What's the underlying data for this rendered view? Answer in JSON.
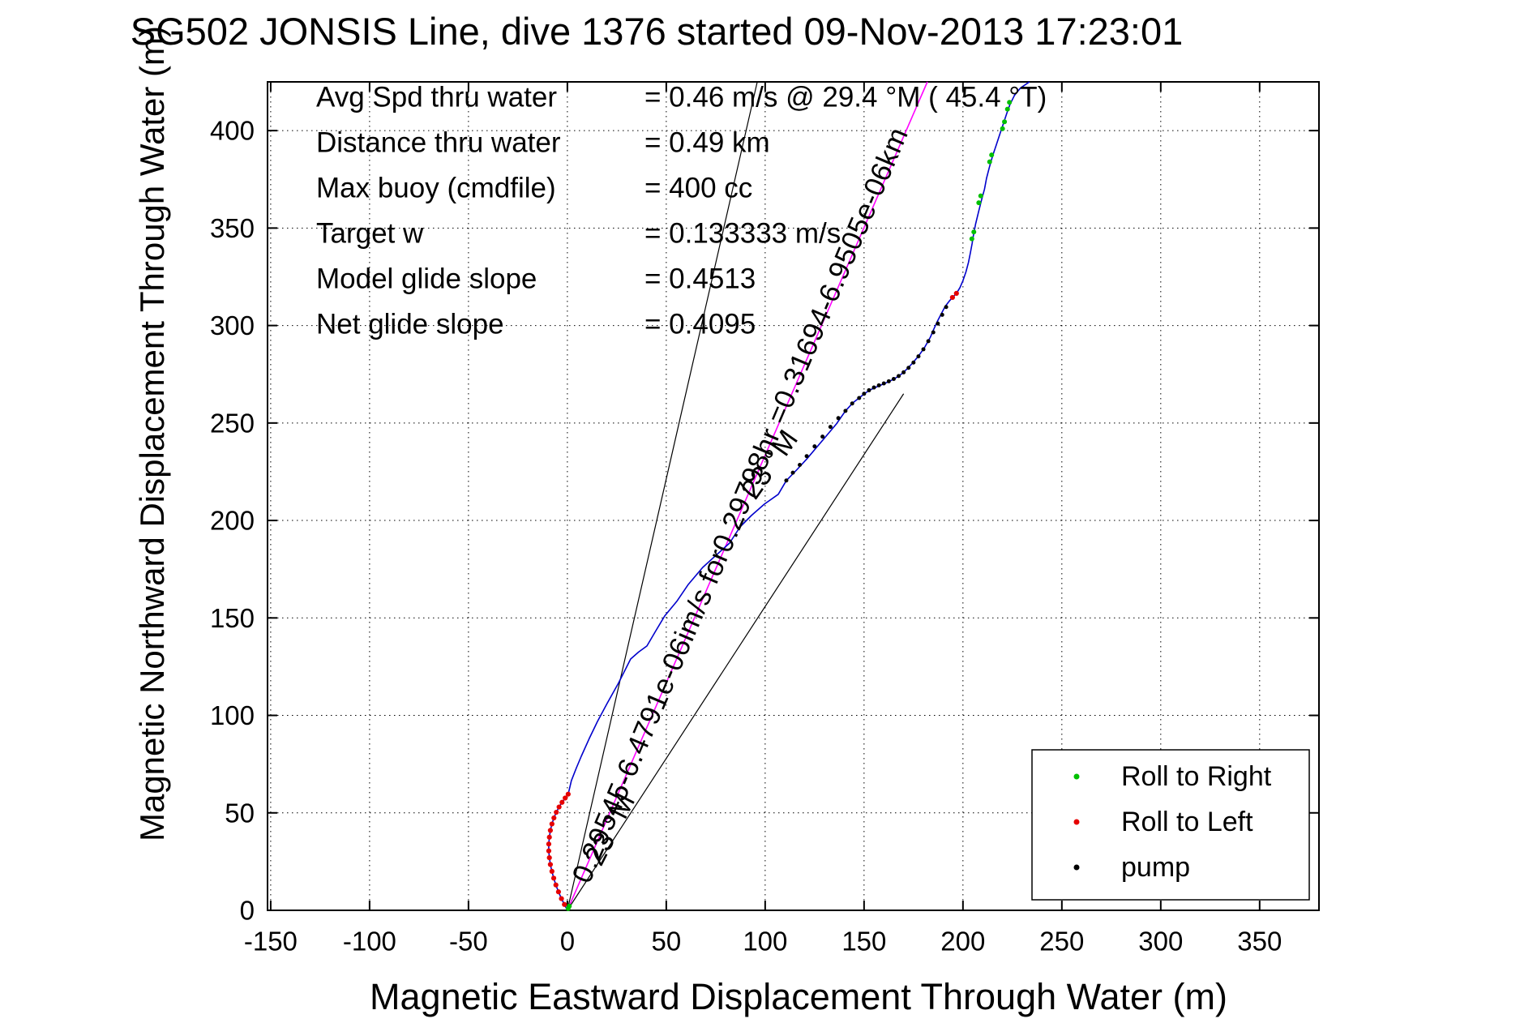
{
  "window": {
    "background": "#ffffff"
  },
  "chart_data": {
    "type": "line",
    "title": "SG502 JONSIS Line, dive 1376 started 09-Nov-2013 17:23:01",
    "xlabel": "Magnetic Eastward Displacement Through Water (m)",
    "ylabel": "Magnetic Northward Displacement Through Water (m)",
    "xlim": [
      -151.6,
      380
    ],
    "ylim": [
      0,
      425
    ],
    "xticks": [
      -150,
      -100,
      -50,
      0,
      50,
      100,
      150,
      200,
      250,
      300,
      350
    ],
    "yticks": [
      0,
      50,
      100,
      150,
      200,
      250,
      300,
      350,
      400
    ],
    "grid": "dotted",
    "grid_color": "#000000",
    "stats": [
      {
        "label": "Avg Spd thru water",
        "value": "=  0.46 m/s @  29.4 °M ( 45.4 °T)"
      },
      {
        "label": "Distance thru water",
        "value": "=  0.49 km"
      },
      {
        "label": "Max buoy (cmdfile)",
        "value": "= 400 cc"
      },
      {
        "label": "Target w",
        "value": "= 0.133333 m/s"
      },
      {
        "label": "Model glide slope",
        "value": "= 0.4513"
      },
      {
        "label": "Net glide slope",
        "value": "= 0.4095"
      }
    ],
    "legend": {
      "position": "lower right",
      "entries": [
        {
          "name": "roll-right",
          "label": "Roll to Right",
          "color": "#00c000"
        },
        {
          "name": "roll-left",
          "label": "Roll to Left",
          "color": "#e60000"
        },
        {
          "name": "pump",
          "label": "pump",
          "color": "#000000"
        }
      ]
    },
    "annotations": [
      {
        "name": "course-speed-annotation",
        "text": "0.29545-6.4791e-06im/s for0.29798hr =0.31694-6.9505e-06km",
        "x": 11,
        "y": 13,
        "rotation": -67
      },
      {
        "name": "bearing-label-1",
        "text": "23 °M",
        "x": 17,
        "y": 22,
        "rotation": -63
      },
      {
        "name": "bearing-label-2",
        "text": "23 °M",
        "x": 95,
        "y": 210,
        "rotation": -55
      }
    ],
    "ref_lines": [
      {
        "name": "bearing-fan-left",
        "color": "#000000",
        "from": [
          0,
          0
        ],
        "to": [
          96,
          425
        ]
      },
      {
        "name": "bearing-fan-right",
        "color": "#000000",
        "from": [
          0,
          0
        ],
        "to": [
          170,
          265
        ]
      },
      {
        "name": "avg-course-line",
        "color": "#ff00ff",
        "from": [
          0,
          0
        ],
        "to": [
          182,
          425
        ]
      }
    ],
    "track": {
      "color": "#0000cc",
      "points": [
        [
          0,
          0
        ],
        [
          -1.5,
          3
        ],
        [
          -3,
          6
        ],
        [
          -4.5,
          9.5
        ],
        [
          -5.8,
          13
        ],
        [
          -6.9,
          16.5
        ],
        [
          -7.8,
          20
        ],
        [
          -8.6,
          23.5
        ],
        [
          -9.1,
          27
        ],
        [
          -9.4,
          30.5
        ],
        [
          -9.4,
          34
        ],
        [
          -9.1,
          37.5
        ],
        [
          -8.6,
          41
        ],
        [
          -7.8,
          44.3
        ],
        [
          -6.8,
          47.4
        ],
        [
          -5.6,
          50.3
        ],
        [
          -4.2,
          53
        ],
        [
          -2.7,
          55.4
        ],
        [
          -1.1,
          57.6
        ],
        [
          0.4,
          59.6
        ],
        [
          2,
          66.5
        ],
        [
          4.5,
          73
        ],
        [
          7,
          79
        ],
        [
          11,
          88
        ],
        [
          15.2,
          96.9
        ],
        [
          20,
          106
        ],
        [
          25.8,
          116.5
        ],
        [
          32,
          128.9
        ],
        [
          36,
          132.5
        ],
        [
          40.2,
          135.6
        ],
        [
          44.5,
          143
        ],
        [
          49.2,
          151
        ],
        [
          55.3,
          158.5
        ],
        [
          61,
          167
        ],
        [
          68.4,
          175.9
        ],
        [
          75,
          182
        ],
        [
          82,
          188.4
        ],
        [
          87.3,
          196.7
        ],
        [
          93,
          202.5
        ],
        [
          99.6,
          208.4
        ],
        [
          106.6,
          213.4
        ],
        [
          110.7,
          220.5
        ],
        [
          116,
          226
        ],
        [
          121,
          231.5
        ],
        [
          126,
          237.5
        ],
        [
          131,
          243.5
        ],
        [
          136,
          249.5
        ],
        [
          140.6,
          256.2
        ],
        [
          144.5,
          260.5
        ],
        [
          147.5,
          262.8
        ],
        [
          150.5,
          265.3
        ],
        [
          153.5,
          267.2
        ],
        [
          156.5,
          268.6
        ],
        [
          159.5,
          269.9
        ],
        [
          162.5,
          271.2
        ],
        [
          165.5,
          272.8
        ],
        [
          168.5,
          274.8
        ],
        [
          171.5,
          277.5
        ],
        [
          174.5,
          280.7
        ],
        [
          177.5,
          284.3
        ],
        [
          180.5,
          288.6
        ],
        [
          183.5,
          294
        ],
        [
          185.2,
          298
        ],
        [
          187,
          302
        ],
        [
          189,
          306
        ],
        [
          191,
          309.8
        ],
        [
          193.3,
          312.8
        ],
        [
          194.7,
          314.4
        ],
        [
          196.7,
          316.5
        ],
        [
          198.5,
          319.5
        ],
        [
          200,
          323
        ],
        [
          201.5,
          327.5
        ],
        [
          202.8,
          332.5
        ],
        [
          203.8,
          337.5
        ],
        [
          204.6,
          342
        ],
        [
          205.3,
          346.4
        ],
        [
          206.4,
          352
        ],
        [
          207.8,
          358
        ],
        [
          209.3,
          364
        ],
        [
          210.9,
          370
        ],
        [
          211.9,
          375.5
        ],
        [
          213.3,
          381
        ],
        [
          215,
          387
        ],
        [
          216.8,
          392.5
        ],
        [
          218.6,
          398
        ],
        [
          220.4,
          403.5
        ],
        [
          222.2,
          409
        ],
        [
          223.8,
          413.5
        ],
        [
          226,
          418
        ],
        [
          229,
          421.8
        ],
        [
          233.6,
          425
        ]
      ]
    },
    "markers": {
      "roll_right": {
        "color": "#00c000",
        "points": [
          [
            0.4,
            0.9
          ],
          [
            1.0,
            2.2
          ],
          [
            204.5,
            344.5
          ],
          [
            205.5,
            348
          ],
          [
            208,
            363
          ],
          [
            209,
            366.5
          ],
          [
            213.5,
            384
          ],
          [
            214.5,
            387.5
          ],
          [
            220,
            401
          ],
          [
            221,
            404.5
          ],
          [
            222.5,
            411
          ],
          [
            223.5,
            414.5
          ]
        ]
      },
      "roll_left": {
        "color": "#e60000",
        "points": [
          [
            -1.5,
            3
          ],
          [
            -3,
            6
          ],
          [
            -4.5,
            9.5
          ],
          [
            -5.8,
            13
          ],
          [
            -6.9,
            16.5
          ],
          [
            -7.8,
            20
          ],
          [
            -8.6,
            23.5
          ],
          [
            -9.1,
            27
          ],
          [
            -9.4,
            30.5
          ],
          [
            -9.4,
            34
          ],
          [
            -9.1,
            37.5
          ],
          [
            -8.6,
            41
          ],
          [
            -7.8,
            44.3
          ],
          [
            -6.8,
            47.4
          ],
          [
            -5.6,
            50.3
          ],
          [
            -4.2,
            53
          ],
          [
            -2.7,
            55.4
          ],
          [
            -1.1,
            57.6
          ],
          [
            0.4,
            59.6
          ],
          [
            194.7,
            314.4
          ],
          [
            196.7,
            316.5
          ]
        ]
      },
      "pump": {
        "color": "#000000",
        "points": [
          [
            110.7,
            220.5
          ],
          [
            114,
            224.5
          ],
          [
            117.5,
            228.5
          ],
          [
            121,
            233
          ],
          [
            125,
            238
          ],
          [
            129,
            243
          ],
          [
            133,
            248
          ],
          [
            137,
            252.5
          ],
          [
            140.6,
            256.2
          ],
          [
            144,
            260
          ],
          [
            147.5,
            262.8
          ],
          [
            150,
            265
          ],
          [
            152.5,
            266.8
          ],
          [
            155,
            268.2
          ],
          [
            157.5,
            269.3
          ],
          [
            160,
            270.3
          ],
          [
            162.5,
            271.4
          ],
          [
            165,
            272.6
          ],
          [
            167.5,
            274.1
          ],
          [
            170,
            276
          ],
          [
            172.5,
            278.3
          ],
          [
            175,
            281
          ],
          [
            177.5,
            284.2
          ],
          [
            180,
            287.8
          ],
          [
            182.5,
            292
          ],
          [
            185,
            296.5
          ],
          [
            187.3,
            301
          ],
          [
            189.5,
            305.5
          ],
          [
            191.5,
            309.5
          ]
        ]
      }
    }
  }
}
